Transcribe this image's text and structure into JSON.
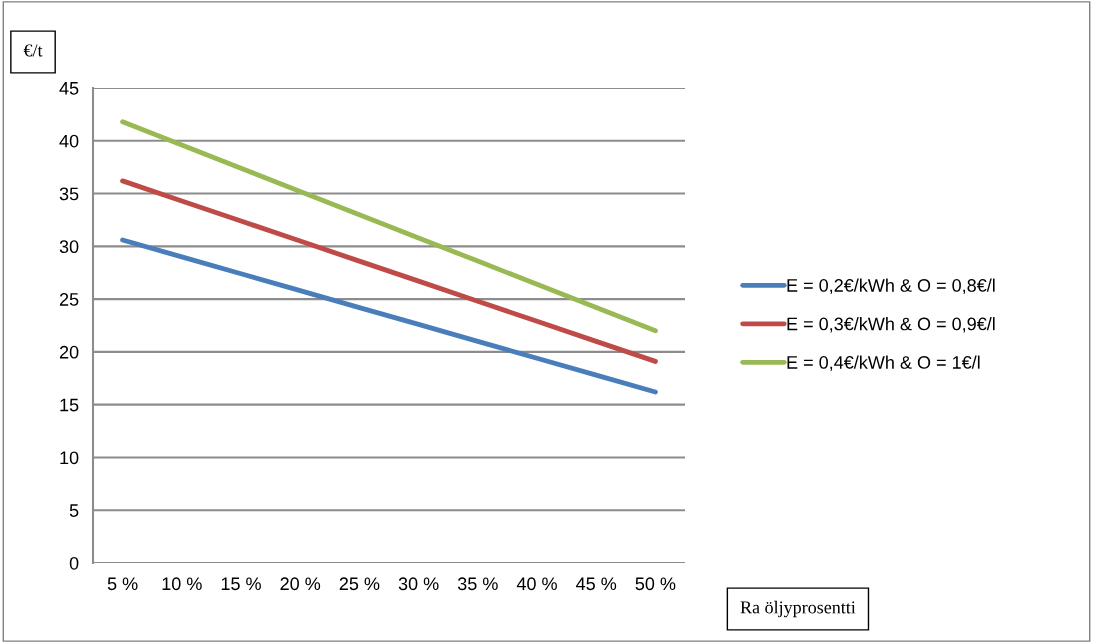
{
  "chart_data": {
    "type": "line",
    "xlabel": "Ra öljyprosentti",
    "ylabel": "€/t",
    "categories": [
      "5 %",
      "10 %",
      "15 %",
      "20 %",
      "25 %",
      "30 %",
      "35 %",
      "40 %",
      "45 %",
      "50 %"
    ],
    "series": [
      {
        "name": "E = 0,2€/kWh & O = 0,8€/l",
        "color": "#4a7ebb",
        "values": [
          30.6,
          29.0,
          27.4,
          25.8,
          24.2,
          22.6,
          21.0,
          19.4,
          17.8,
          16.2
        ]
      },
      {
        "name": "E = 0,3€/kWh & O = 0,9€/l",
        "color": "#be4b48",
        "values": [
          36.2,
          34.3,
          32.4,
          30.5,
          28.6,
          26.7,
          24.8,
          22.9,
          21.0,
          19.1
        ]
      },
      {
        "name": "E = 0,4€/kWh & O = 1€/l",
        "color": "#98b954",
        "values": [
          41.8,
          39.6,
          37.4,
          35.2,
          33.0,
          30.8,
          28.6,
          26.4,
          24.2,
          22.0
        ]
      }
    ],
    "ylim": [
      0,
      45
    ],
    "yticks": [
      0,
      5,
      10,
      15,
      20,
      25,
      30,
      35,
      40,
      45
    ],
    "grid": "y",
    "legend": "right",
    "marker": "none",
    "line_style": "solid"
  }
}
